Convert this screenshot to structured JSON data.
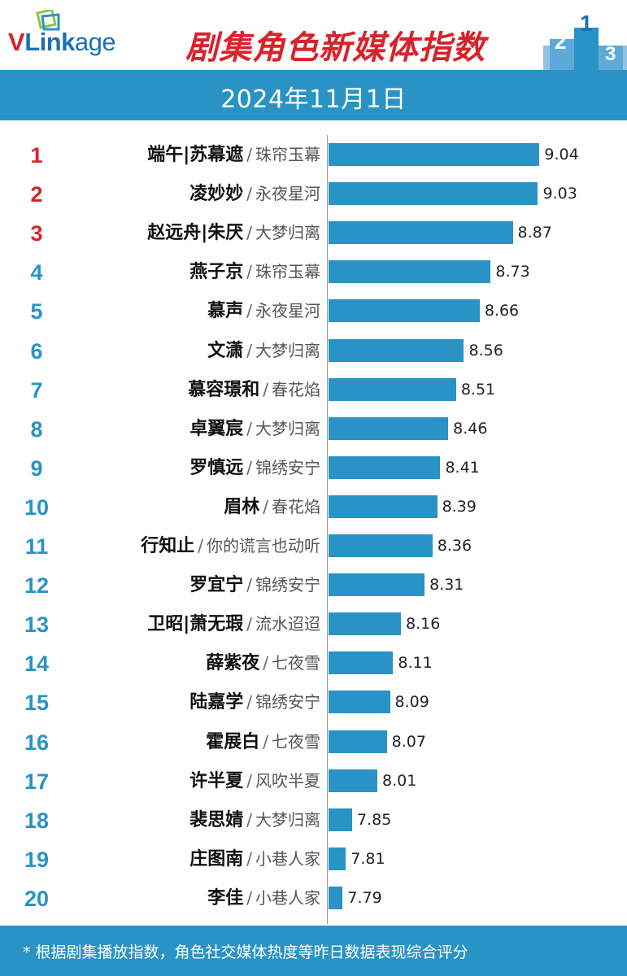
{
  "header": {
    "logo_v": "V",
    "logo_link": "Link",
    "logo_age": "age",
    "title": "剧集角色新媒体指数",
    "podium_numbers": [
      "2",
      "1",
      "3"
    ]
  },
  "date": "2024年11月1日",
  "footer": "* 根据剧集播放指数，角色社交媒体热度等昨日数据表现综合评分",
  "colors": {
    "bar": "#2a93c5",
    "rank_top3": "#d8232a",
    "rank_other": "#2a93c5",
    "title": "#d8232a"
  },
  "chart_data": {
    "type": "bar",
    "orientation": "horizontal",
    "items": [
      {
        "rank": "1",
        "role": "端午|苏幕遮",
        "drama": "珠帘玉幕",
        "value": 9.04,
        "value_label": "9.04"
      },
      {
        "rank": "2",
        "role": "凌妙妙",
        "drama": "永夜星河",
        "value": 9.03,
        "value_label": "9.03"
      },
      {
        "rank": "3",
        "role": "赵远舟|朱厌",
        "drama": "大梦归离",
        "value": 8.87,
        "value_label": "8.87"
      },
      {
        "rank": "4",
        "role": "燕子京",
        "drama": "珠帘玉幕",
        "value": 8.73,
        "value_label": "8.73"
      },
      {
        "rank": "5",
        "role": "慕声",
        "drama": "永夜星河",
        "value": 8.66,
        "value_label": "8.66"
      },
      {
        "rank": "6",
        "role": "文潇",
        "drama": "大梦归离",
        "value": 8.56,
        "value_label": "8.56"
      },
      {
        "rank": "7",
        "role": "慕容璟和",
        "drama": "春花焰",
        "value": 8.51,
        "value_label": "8.51"
      },
      {
        "rank": "8",
        "role": "卓翼宸",
        "drama": "大梦归离",
        "value": 8.46,
        "value_label": "8.46"
      },
      {
        "rank": "9",
        "role": "罗慎远",
        "drama": "锦绣安宁",
        "value": 8.41,
        "value_label": "8.41"
      },
      {
        "rank": "10",
        "role": "眉林",
        "drama": "春花焰",
        "value": 8.39,
        "value_label": "8.39"
      },
      {
        "rank": "11",
        "role": "行知止",
        "drama": "你的谎言也动听",
        "value": 8.36,
        "value_label": "8.36"
      },
      {
        "rank": "12",
        "role": "罗宜宁",
        "drama": "锦绣安宁",
        "value": 8.31,
        "value_label": "8.31"
      },
      {
        "rank": "13",
        "role": "卫昭|萧无瑕",
        "drama": "流水迢迢",
        "value": 8.16,
        "value_label": "8.16"
      },
      {
        "rank": "14",
        "role": "薛紫夜",
        "drama": "七夜雪",
        "value": 8.11,
        "value_label": "8.11"
      },
      {
        "rank": "15",
        "role": "陆嘉学",
        "drama": "锦绣安宁",
        "value": 8.09,
        "value_label": "8.09"
      },
      {
        "rank": "16",
        "role": "霍展白",
        "drama": "七夜雪",
        "value": 8.07,
        "value_label": "8.07"
      },
      {
        "rank": "17",
        "role": "许半夏",
        "drama": "风吹半夏",
        "value": 8.01,
        "value_label": "8.01"
      },
      {
        "rank": "18",
        "role": "裴思婧",
        "drama": "大梦归离",
        "value": 7.85,
        "value_label": "7.85"
      },
      {
        "rank": "19",
        "role": "庄图南",
        "drama": "小巷人家",
        "value": 7.81,
        "value_label": "7.81"
      },
      {
        "rank": "20",
        "role": "李佳",
        "drama": "小巷人家",
        "value": 7.79,
        "value_label": "7.79"
      }
    ]
  }
}
